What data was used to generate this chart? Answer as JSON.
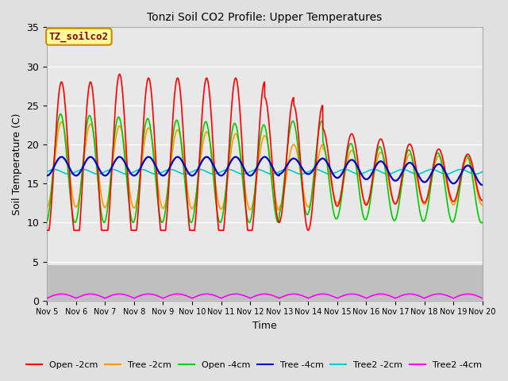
{
  "title": "Tonzi Soil CO2 Profile: Upper Temperatures",
  "xlabel": "Time",
  "ylabel": "Soil Temperature (C)",
  "ylim": [
    0,
    35
  ],
  "xlim": [
    0,
    15
  ],
  "fig_bg": "#e0e0e0",
  "plot_bg_upper": "#e8e8e8",
  "plot_bg_lower": "#c8c8c8",
  "grid_color": "#ffffff",
  "annotation_text": "TZ_soilco2",
  "annotation_bg": "#ffff99",
  "annotation_border": "#cc8800",
  "annotation_text_color": "#880000",
  "xtick_labels": [
    "Nov 5",
    "Nov 6",
    "Nov 7",
    "Nov 8",
    "Nov 9",
    "Nov 10",
    "Nov 11",
    "Nov 12",
    "Nov 13",
    "Nov 14",
    "Nov 15",
    "Nov 16",
    "Nov 17",
    "Nov 18",
    "Nov 19",
    "Nov 20"
  ],
  "series_colors": {
    "Open -2cm": "#ff0000",
    "Tree -2cm": "#ff9900",
    "Open -4cm": "#00cc00",
    "Tree -4cm": "#0000cc",
    "Tree2 -2cm": "#00cccc",
    "Tree2 -4cm": "#ff00ff"
  },
  "legend_labels": [
    "Open -2cm",
    "Tree -2cm",
    "Open -4cm",
    "Tree -4cm",
    "Tree2 -2cm",
    "Tree2 -4cm"
  ]
}
